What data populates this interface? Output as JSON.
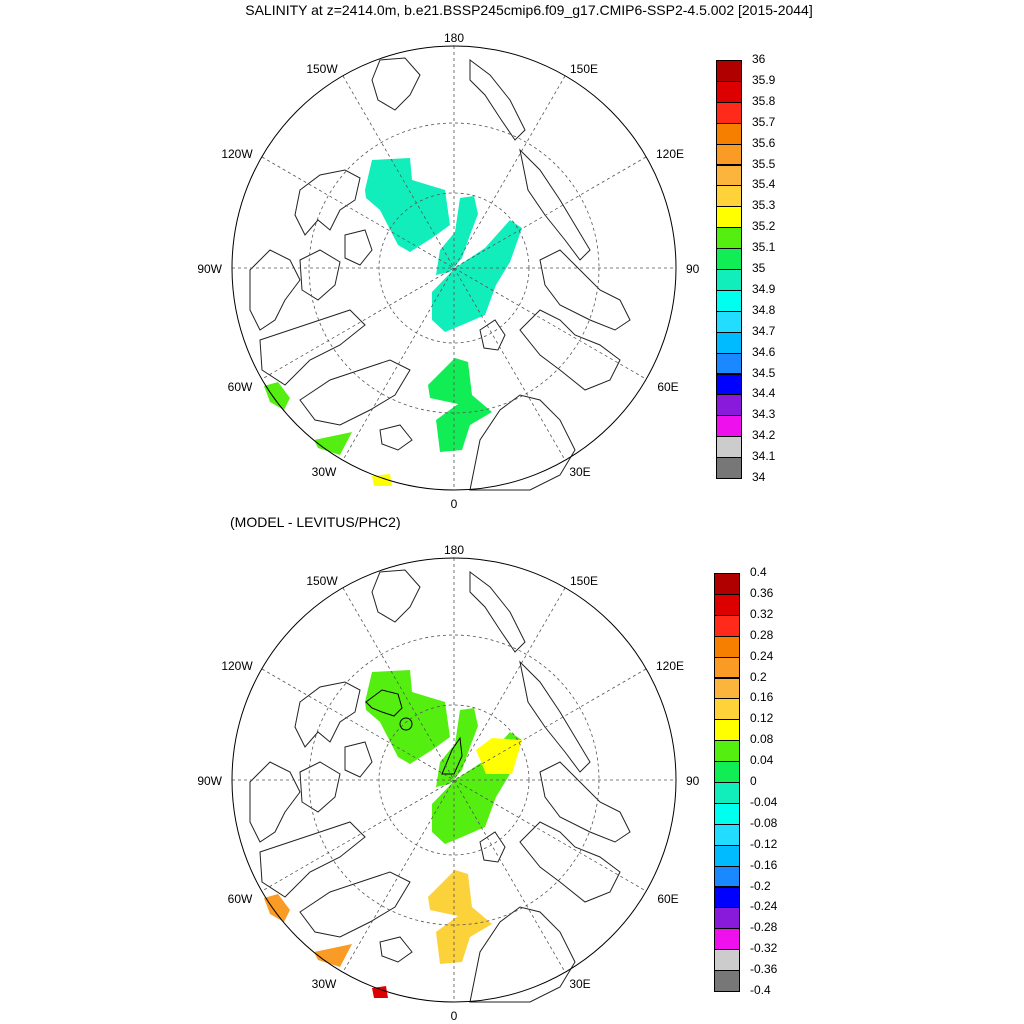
{
  "title": "SALINITY at z=2414.0m, b.e21.BSSP245cmip6.f09_g17.CMIP6-SSP2-4.5.002 [2015-2044]",
  "subtitle": "(MODEL - LEVITUS/PHC2)",
  "longitude_labels": {
    "top": "180",
    "bottom": "0",
    "left": "90W",
    "right": "90E",
    "upper_left": "150W",
    "upper_right": "150E",
    "mid_left_upper": "120W",
    "mid_right_upper": "120E",
    "mid_left_lower": "60W",
    "mid_right_lower": "60E",
    "lower_left": "30W",
    "lower_right": "30E"
  },
  "colorbar_top": {
    "labels": [
      "36",
      "35.9",
      "35.8",
      "35.7",
      "35.6",
      "35.5",
      "35.4",
      "35.3",
      "35.2",
      "35.1",
      "35",
      "34.9",
      "34.8",
      "34.7",
      "34.6",
      "34.5",
      "34.4",
      "34.3",
      "34.2",
      "34.1",
      "34"
    ],
    "colors": [
      "#b00000",
      "#dd0000",
      "#ff2a1a",
      "#f77f00",
      "#fa9b26",
      "#fcb53c",
      "#ffd23a",
      "#ffff00",
      "#55ee11",
      "#11ee55",
      "#11eebb",
      "#00ffee",
      "#22ddff",
      "#00bbff",
      "#1a88ff",
      "#0000ff",
      "#8a1adb",
      "#ee11ee",
      "#cccccc",
      "#777777"
    ]
  },
  "colorbar_bottom": {
    "labels": [
      "0.4",
      "0.36",
      "0.32",
      "0.28",
      "0.24",
      "0.2",
      "0.16",
      "0.12",
      "0.08",
      "0.04",
      "0",
      "-0.04",
      "-0.08",
      "-0.12",
      "-0.16",
      "-0.2",
      "-0.24",
      "-0.28",
      "-0.32",
      "-0.36",
      "-0.4"
    ],
    "colors": [
      "#b00000",
      "#dd0000",
      "#ff2a1a",
      "#f77f00",
      "#fa9b26",
      "#fcb53c",
      "#ffd23a",
      "#ffff00",
      "#55ee11",
      "#11ee55",
      "#11eebb",
      "#00ffee",
      "#22ddff",
      "#00bbff",
      "#1a88ff",
      "#0000ff",
      "#8a1adb",
      "#ee11ee",
      "#cccccc",
      "#777777"
    ]
  },
  "fields_top": {
    "canada_basin": "#11eebb",
    "makarov_basin": "#11eebb",
    "eurasian_basin": "#11eebb",
    "nordic_seas": "#11ee55",
    "baffin_bay": "#55ee11",
    "north_atlantic": "#55ee11",
    "iceland_patch": "#ffff00"
  },
  "fields_bottom": {
    "canada_basin": "#55ee11",
    "makarov_basin": "#55ee11",
    "eurasian_basin": "#55ee11",
    "lomonosov_patch": "#ffff00",
    "nordic_seas": "#fcd23a",
    "baffin_bay": "#fa9b26",
    "north_atlantic": "#fa9b26",
    "iceland_patch": "#dd0000"
  }
}
